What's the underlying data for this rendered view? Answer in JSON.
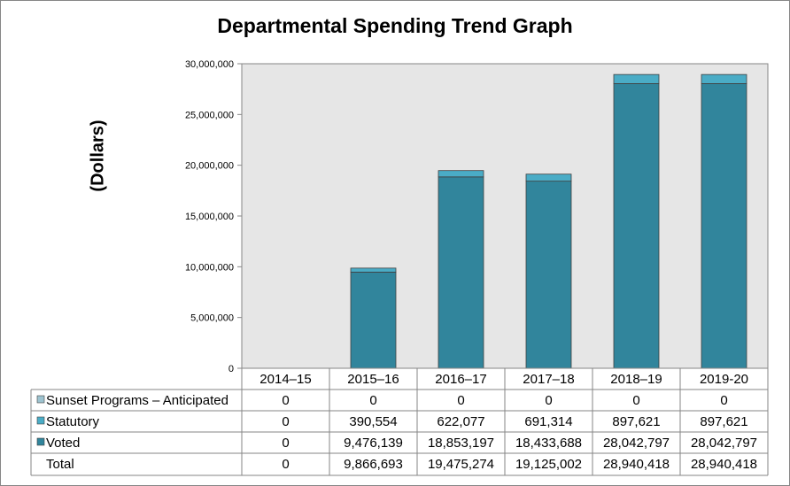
{
  "chart_data": {
    "type": "bar",
    "stacked": true,
    "title": "Departmental Spending Trend Graph",
    "ylabel": "(Dollars)",
    "xlabel": "",
    "ylim": [
      0,
      30000000
    ],
    "yticks": [
      0,
      5000000,
      10000000,
      15000000,
      20000000,
      25000000,
      30000000
    ],
    "ytick_labels": [
      "0",
      "5,000,000",
      "10,000,000",
      "15,000,000",
      "20,000,000",
      "25,000,000",
      "30,000,000"
    ],
    "grid": false,
    "legend": "data-table",
    "categories": [
      "2014–15",
      "2015–16",
      "2016–17",
      "2017–18",
      "2018–19",
      "2019-20"
    ],
    "series": [
      {
        "name": "Sunset Programs – Anticipated",
        "color": "#9DC3D0",
        "values": [
          0,
          0,
          0,
          0,
          0,
          0
        ],
        "labels": [
          "0",
          "0",
          "0",
          "0",
          "0",
          "0"
        ]
      },
      {
        "name": "Statutory",
        "color": "#4AACC6",
        "values": [
          0,
          390554,
          622077,
          691314,
          897621,
          897621
        ],
        "labels": [
          "0",
          "390,554",
          "622,077",
          "691,314",
          "897,621",
          "897,621"
        ]
      },
      {
        "name": "Voted",
        "color": "#31859C",
        "values": [
          0,
          9476139,
          18853197,
          18433688,
          28042797,
          28042797
        ],
        "labels": [
          "0",
          "9,476,139",
          "18,853,197",
          "18,433,688",
          "28,042,797",
          "28,042,797"
        ]
      }
    ],
    "total": {
      "name": "Total",
      "values": [
        0,
        9866693,
        19475274,
        19125002,
        28940418,
        28940418
      ],
      "labels": [
        "0",
        "9,866,693",
        "19,475,274",
        "19,125,002",
        "28,940,418",
        "28,940,418"
      ]
    },
    "colors": {
      "plot_background": "#E6E6E6",
      "voted": "#31859C",
      "statutory": "#4AACC6",
      "sunset": "#9DC3D0"
    }
  }
}
